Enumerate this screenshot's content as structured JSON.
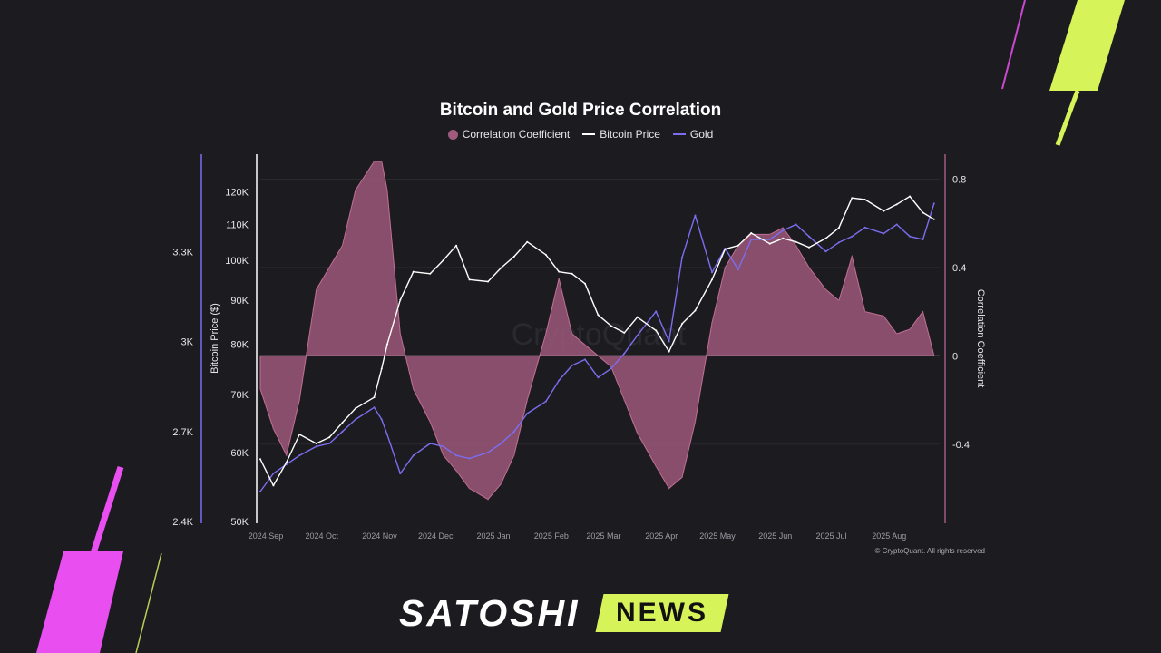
{
  "chart_data": {
    "type": "line",
    "title": "Bitcoin and Gold Price Correlation",
    "legend": [
      {
        "name": "Correlation Coefficient",
        "color": "#a05a7e",
        "style": "area"
      },
      {
        "name": "Bitcoin Price",
        "color": "#ffffff",
        "style": "line"
      },
      {
        "name": "Gold",
        "color": "#7b6ef0",
        "style": "line"
      }
    ],
    "legend_position": "top-center",
    "x_ticks": [
      "2024 Sep",
      "2024 Oct",
      "2024 Nov",
      "2024 Dec",
      "2025 Jan",
      "2025 Feb",
      "2025 Mar",
      "2025 Apr",
      "2025 May",
      "2025 Jun",
      "2025 Jul",
      "2025 Aug"
    ],
    "x_range": [
      "2024-09-01",
      "2025-08-31"
    ],
    "y_bitcoin": {
      "label": "Bitcoin Price ($)",
      "scale": "log",
      "range": [
        50000,
        130000
      ],
      "ticks": [
        50000,
        60000,
        70000,
        80000,
        90000,
        100000,
        110000,
        120000
      ],
      "tick_labels": [
        "50K",
        "60K",
        "70K",
        "80K",
        "90K",
        "100K",
        "110K",
        "120K"
      ]
    },
    "y_gold": {
      "label": "",
      "range": [
        2400,
        3600
      ],
      "ticks": [
        2400,
        2700,
        3000,
        3300
      ],
      "tick_labels": [
        "2.4K",
        "2.7K",
        "3K",
        "3.3K"
      ]
    },
    "y_corr": {
      "label": "Correlation Coefficient",
      "range": [
        -0.75,
        0.88
      ],
      "ticks": [
        -0.4,
        0,
        0.4,
        0.8
      ],
      "tick_labels": [
        "-0.4",
        "0",
        "0.4",
        "0.8"
      ]
    },
    "series": [
      {
        "name": "Correlation Coefficient",
        "x": [
          "2024-09-01",
          "2024-09-08",
          "2024-09-15",
          "2024-09-22",
          "2024-10-01",
          "2024-10-08",
          "2024-10-15",
          "2024-10-22",
          "2024-11-01",
          "2024-11-05",
          "2024-11-08",
          "2024-11-15",
          "2024-11-22",
          "2024-12-01",
          "2024-12-08",
          "2024-12-15",
          "2024-12-22",
          "2025-01-01",
          "2025-01-08",
          "2025-01-15",
          "2025-01-22",
          "2025-02-01",
          "2025-02-08",
          "2025-02-15",
          "2025-02-22",
          "2025-03-01",
          "2025-03-08",
          "2025-03-15",
          "2025-03-22",
          "2025-04-01",
          "2025-04-08",
          "2025-04-15",
          "2025-04-22",
          "2025-05-01",
          "2025-05-08",
          "2025-05-15",
          "2025-05-22",
          "2025-06-01",
          "2025-06-08",
          "2025-06-15",
          "2025-06-22",
          "2025-07-01",
          "2025-07-08",
          "2025-07-15",
          "2025-07-22",
          "2025-08-01",
          "2025-08-08",
          "2025-08-15",
          "2025-08-22",
          "2025-08-28"
        ],
        "values": [
          -0.15,
          -0.33,
          -0.45,
          -0.2,
          0.3,
          0.4,
          0.5,
          0.75,
          0.88,
          0.88,
          0.75,
          0.1,
          -0.15,
          -0.3,
          -0.45,
          -0.52,
          -0.6,
          -0.65,
          -0.58,
          -0.45,
          -0.2,
          0.1,
          0.35,
          0.1,
          0.05,
          0,
          -0.05,
          -0.2,
          -0.35,
          -0.5,
          -0.6,
          -0.55,
          -0.3,
          0.15,
          0.4,
          0.5,
          0.55,
          0.55,
          0.58,
          0.5,
          0.4,
          0.3,
          0.25,
          0.45,
          0.2,
          0.18,
          0.1,
          0.12,
          0.2,
          0
        ],
        "color": "#a05a7e"
      },
      {
        "name": "Bitcoin Price",
        "x": [
          "2024-09-01",
          "2024-09-08",
          "2024-09-15",
          "2024-09-22",
          "2024-10-01",
          "2024-10-08",
          "2024-10-15",
          "2024-10-22",
          "2024-11-01",
          "2024-11-05",
          "2024-11-08",
          "2024-11-15",
          "2024-11-22",
          "2024-12-01",
          "2024-12-08",
          "2024-12-15",
          "2024-12-22",
          "2025-01-01",
          "2025-01-08",
          "2025-01-15",
          "2025-01-22",
          "2025-02-01",
          "2025-02-08",
          "2025-02-15",
          "2025-02-22",
          "2025-03-01",
          "2025-03-08",
          "2025-03-15",
          "2025-03-22",
          "2025-04-01",
          "2025-04-08",
          "2025-04-15",
          "2025-04-22",
          "2025-05-01",
          "2025-05-08",
          "2025-05-15",
          "2025-05-22",
          "2025-06-01",
          "2025-06-08",
          "2025-06-15",
          "2025-06-22",
          "2025-07-01",
          "2025-07-08",
          "2025-07-15",
          "2025-07-22",
          "2025-08-01",
          "2025-08-08",
          "2025-08-15",
          "2025-08-22",
          "2025-08-28"
        ],
        "values": [
          59000,
          55000,
          58500,
          63000,
          61500,
          62500,
          65000,
          67500,
          69500,
          75000,
          80000,
          90000,
          97000,
          96500,
          100000,
          104000,
          95000,
          94500,
          98000,
          101000,
          105000,
          101500,
          97000,
          96500,
          94000,
          86500,
          84000,
          82500,
          86000,
          83000,
          78500,
          84500,
          87500,
          95000,
          103000,
          104000,
          107500,
          104500,
          106000,
          105000,
          103500,
          106000,
          109000,
          118000,
          117500,
          114000,
          116000,
          118500,
          113500,
          111500
        ],
        "color": "#ffffff"
      },
      {
        "name": "Gold",
        "x": [
          "2024-09-01",
          "2024-09-08",
          "2024-09-15",
          "2024-09-22",
          "2024-10-01",
          "2024-10-08",
          "2024-10-15",
          "2024-10-22",
          "2024-11-01",
          "2024-11-05",
          "2024-11-08",
          "2024-11-15",
          "2024-11-22",
          "2024-12-01",
          "2024-12-08",
          "2024-12-15",
          "2024-12-22",
          "2025-01-01",
          "2025-01-08",
          "2025-01-15",
          "2025-01-22",
          "2025-02-01",
          "2025-02-08",
          "2025-02-15",
          "2025-02-22",
          "2025-03-01",
          "2025-03-08",
          "2025-03-15",
          "2025-03-22",
          "2025-04-01",
          "2025-04-08",
          "2025-04-15",
          "2025-04-22",
          "2025-05-01",
          "2025-05-08",
          "2025-05-15",
          "2025-05-22",
          "2025-06-01",
          "2025-06-08",
          "2025-06-15",
          "2025-06-22",
          "2025-07-01",
          "2025-07-08",
          "2025-07-15",
          "2025-07-22",
          "2025-08-01",
          "2025-08-08",
          "2025-08-15",
          "2025-08-22",
          "2025-08-28"
        ],
        "values": [
          2500,
          2560,
          2590,
          2620,
          2650,
          2660,
          2700,
          2740,
          2780,
          2740,
          2690,
          2560,
          2620,
          2660,
          2650,
          2620,
          2610,
          2630,
          2660,
          2700,
          2760,
          2800,
          2870,
          2920,
          2940,
          2880,
          2910,
          2960,
          3020,
          3100,
          3000,
          3280,
          3420,
          3230,
          3310,
          3240,
          3340,
          3340,
          3370,
          3390,
          3350,
          3300,
          3330,
          3350,
          3380,
          3360,
          3390,
          3350,
          3340,
          3460
        ],
        "color": "#7b6ef0"
      }
    ],
    "watermark": "CryptoQuant",
    "source_note": "© CryptoQuant. All rights reserved"
  },
  "brand": {
    "left": "SATOSHI",
    "right": "NEWS"
  }
}
